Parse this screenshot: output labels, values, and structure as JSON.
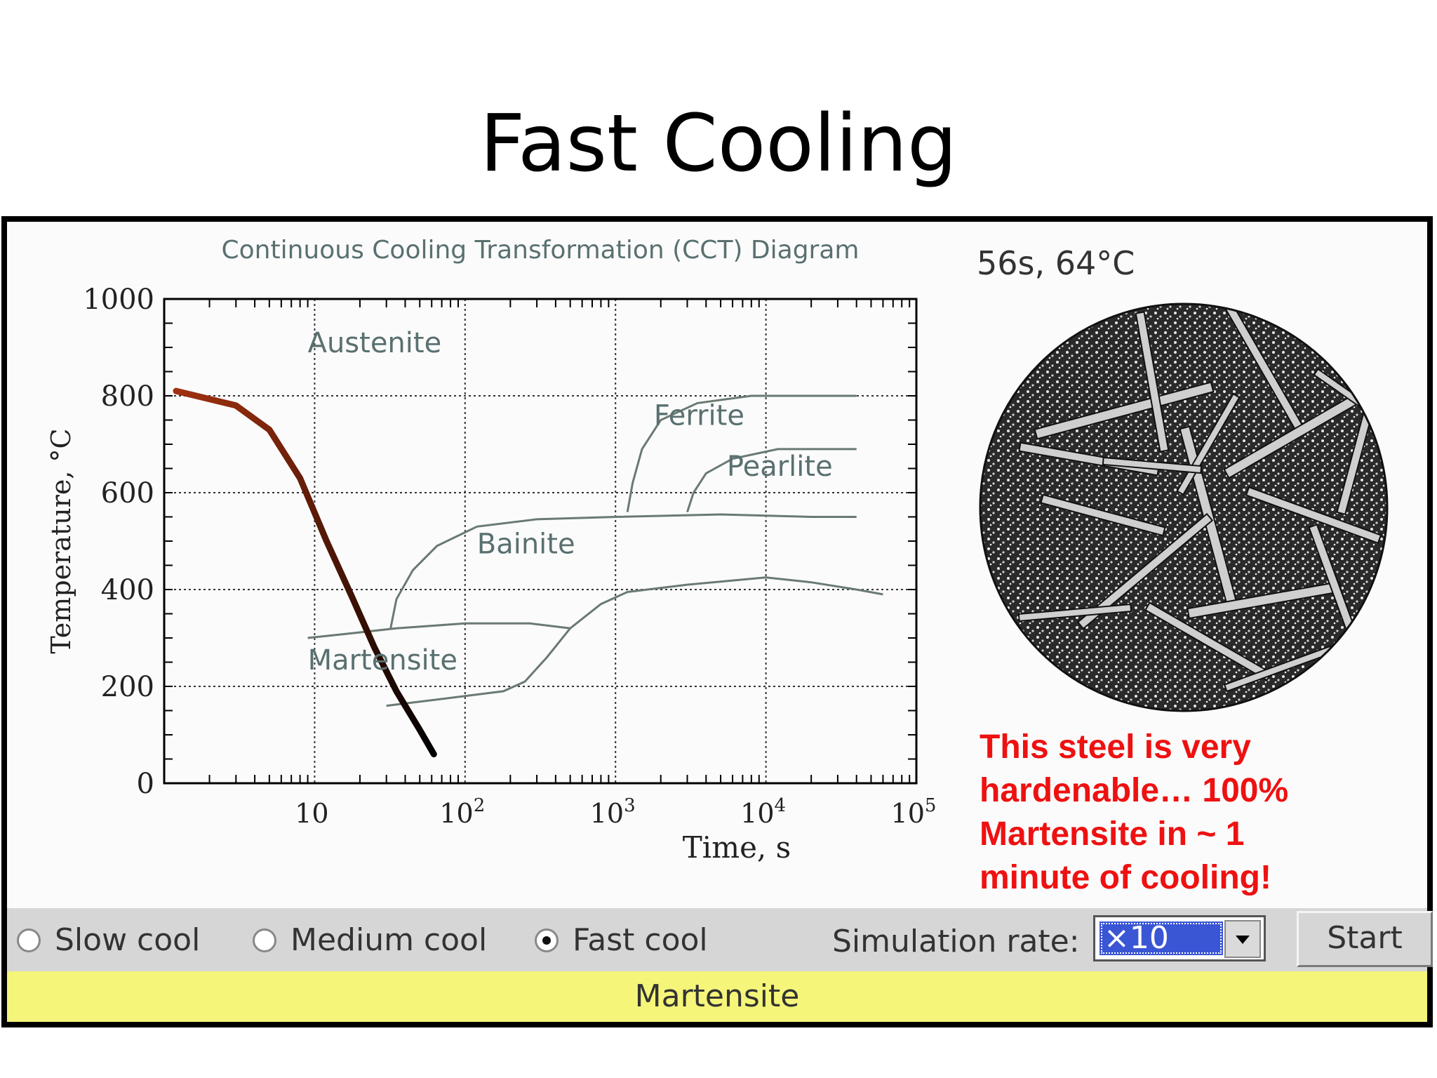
{
  "slide": {
    "title": "Fast Cooling"
  },
  "note": {
    "text": "This steel is very hardenable… 100% Martensite in ~ 1 minute of cooling!"
  },
  "readout": {
    "time_temp": "56s, 64°C"
  },
  "micrograph": {
    "icon": "martensite-micrograph-icon",
    "label": "Martensite"
  },
  "controls": {
    "options": [
      {
        "label": "Slow cool",
        "selected": false
      },
      {
        "label": "Medium cool",
        "selected": false
      },
      {
        "label": "Fast cool",
        "selected": true
      }
    ],
    "rate_label": "Simulation rate:",
    "rate_value": "×10",
    "start_label": "Start"
  },
  "status": {
    "phase": "Martensite"
  },
  "colors": {
    "curve": "#6a7a72",
    "cooling_start": "#a03010",
    "cooling_end": "#000000",
    "note": "#ee1111",
    "status_bg": "#f5f57a",
    "select_bg": "#3a56d4"
  },
  "chart_data": {
    "type": "line",
    "title": "Continuous Cooling Transformation (CCT) Diagram",
    "xlabel": "Time, s",
    "ylabel": "Temperature, °C",
    "x_scale": "log",
    "xlim": [
      1,
      100000
    ],
    "ylim": [
      0,
      1000
    ],
    "x_ticks": [
      {
        "label": "10",
        "exp": ""
      },
      {
        "label": "10",
        "exp": "2"
      },
      {
        "label": "10",
        "exp": "3"
      },
      {
        "label": "10",
        "exp": "4"
      },
      {
        "label": "10",
        "exp": "5"
      }
    ],
    "x_tick_values": [
      10,
      100,
      1000,
      10000,
      100000
    ],
    "y_ticks": [
      "0",
      "200",
      "400",
      "600",
      "800",
      "1000"
    ],
    "y_tick_values": [
      0,
      200,
      400,
      600,
      800,
      1000
    ],
    "grid": true,
    "regions": [
      {
        "label": "Austenite",
        "x": 9,
        "y": 890
      },
      {
        "label": "Ferrite",
        "x": 1800,
        "y": 740
      },
      {
        "label": "Pearlite",
        "x": 5500,
        "y": 635
      },
      {
        "label": "Bainite",
        "x": 120,
        "y": 475
      },
      {
        "label": "Martensite",
        "x": 9,
        "y": 235
      }
    ],
    "series": [
      {
        "points": [
          [
            9,
            300
          ],
          [
            18,
            310
          ],
          [
            35,
            320
          ],
          [
            100,
            330
          ],
          [
            270,
            330
          ],
          [
            500,
            320
          ]
        ]
      },
      {
        "points": [
          [
            32,
            320
          ],
          [
            35,
            380
          ],
          [
            45,
            440
          ],
          [
            65,
            490
          ],
          [
            120,
            530
          ],
          [
            300,
            545
          ],
          [
            1000,
            550
          ],
          [
            5000,
            555
          ],
          [
            20000,
            550
          ],
          [
            40000,
            550
          ]
        ]
      },
      {
        "points": [
          [
            30,
            160
          ],
          [
            100,
            180
          ],
          [
            180,
            190
          ],
          [
            250,
            210
          ],
          [
            350,
            260
          ],
          [
            500,
            320
          ],
          [
            800,
            370
          ],
          [
            1200,
            395
          ],
          [
            3000,
            410
          ],
          [
            10000,
            425
          ],
          [
            20000,
            415
          ],
          [
            40000,
            400
          ],
          [
            60000,
            390
          ]
        ]
      },
      {
        "points": [
          [
            1200,
            560
          ],
          [
            1300,
            620
          ],
          [
            1500,
            690
          ],
          [
            2000,
            750
          ],
          [
            3500,
            785
          ],
          [
            8000,
            800
          ],
          [
            20000,
            800
          ],
          [
            40000,
            800
          ]
        ]
      },
      {
        "points": [
          [
            3000,
            560
          ],
          [
            3300,
            600
          ],
          [
            4000,
            640
          ],
          [
            6000,
            670
          ],
          [
            12000,
            690
          ],
          [
            40000,
            690
          ]
        ]
      }
    ],
    "cooling_curve": {
      "points": [
        [
          1.2,
          810
        ],
        [
          3,
          780
        ],
        [
          5,
          730
        ],
        [
          8,
          630
        ],
        [
          12,
          500
        ],
        [
          18,
          380
        ],
        [
          25,
          280
        ],
        [
          35,
          190
        ],
        [
          50,
          110
        ],
        [
          62,
          60
        ]
      ]
    }
  }
}
